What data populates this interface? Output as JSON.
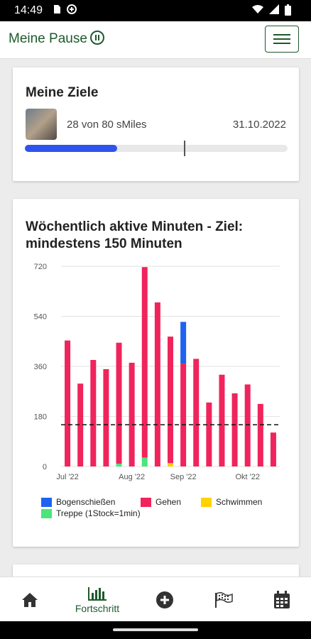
{
  "status": {
    "time": "14:49"
  },
  "app": {
    "title": "Meine Pause"
  },
  "goals": {
    "title": "Meine Ziele",
    "progress_text": "28 von 80 sMiles",
    "date": "31.10.2022",
    "progress_fraction": 0.35,
    "marker_fraction": 0.605
  },
  "chart_data": {
    "type": "bar",
    "title": "Wöchentlich aktive Minuten - Ziel: mindestens 150 Minuten",
    "ylim": [
      0,
      720
    ],
    "yticks": [
      "0",
      "180",
      "360",
      "540",
      "720"
    ],
    "target_line": 150,
    "xtick_labels": [
      {
        "label": "Jul '22",
        "index": 0
      },
      {
        "label": "Aug '22",
        "index": 5
      },
      {
        "label": "Sep '22",
        "index": 9
      },
      {
        "label": "Okt '22",
        "index": 14
      }
    ],
    "categories": [
      "1",
      "2",
      "3",
      "4",
      "5",
      "6",
      "7",
      "8",
      "9",
      "10",
      "11",
      "12",
      "13",
      "14",
      "15",
      "16",
      "17"
    ],
    "series": [
      {
        "name": "Bogenschießen",
        "color": "#1e63f0",
        "values": [
          0,
          0,
          0,
          0,
          0,
          0,
          0,
          0,
          0,
          150,
          0,
          0,
          0,
          0,
          0,
          0,
          0
        ]
      },
      {
        "name": "Gehen",
        "color": "#f0245c",
        "values": [
          453,
          298,
          383,
          350,
          435,
          373,
          685,
          590,
          455,
          370,
          387,
          230,
          330,
          263,
          295,
          225,
          122
        ]
      },
      {
        "name": "Schwimmen",
        "color": "#ffd200",
        "values": [
          0,
          0,
          0,
          0,
          0,
          0,
          0,
          0,
          12,
          0,
          0,
          0,
          0,
          0,
          0,
          0,
          0
        ]
      },
      {
        "name": "Treppe (1Stock=1min)",
        "color": "#4ae67a",
        "values": [
          0,
          0,
          0,
          0,
          10,
          0,
          32,
          0,
          0,
          0,
          0,
          0,
          0,
          0,
          0,
          0,
          0
        ]
      }
    ]
  },
  "nav": {
    "home_icon": "home-icon",
    "progress_label": "Fortschritt",
    "add_icon": "plus-circle-icon",
    "goal_icon": "flag-icon",
    "calendar_icon": "calendar-icon"
  }
}
